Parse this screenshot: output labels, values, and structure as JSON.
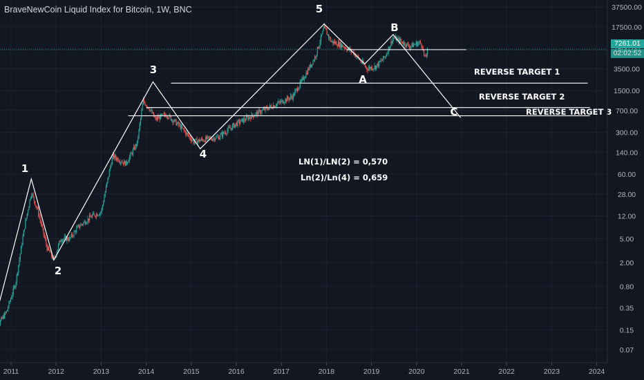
{
  "header": {
    "title": "BraveNewCoin Liquid Index for Bitcoin, 1W, BNC"
  },
  "price_labels": {
    "last_price": "7261.01",
    "countdown": "02:02:52"
  },
  "colors": {
    "background": "#131722",
    "up": "#26a69a",
    "down": "#ef5350",
    "price_line": "#26a69a",
    "annotation": "#ffffff",
    "grid": "#1e2230"
  },
  "chart_data": {
    "type": "candlestick",
    "title": "BraveNewCoin Liquid Index for Bitcoin, 1W, BNC",
    "yscale": "log",
    "y_ticks": [
      "0.07",
      "0.15",
      "0.35",
      "0.80",
      "2.00",
      "5.00",
      "12.00",
      "28.00",
      "60.00",
      "140.00",
      "300.00",
      "700.00",
      "1500.00",
      "3500.00",
      "7500.00",
      "17500.00",
      "37500.00"
    ],
    "x_ticks": [
      "2011",
      "2012",
      "2013",
      "2014",
      "2015",
      "2016",
      "2017",
      "2018",
      "2019",
      "2020",
      "2021",
      "2022",
      "2023",
      "2024"
    ],
    "price_anchors": [
      {
        "t": 2010.55,
        "v": 0.05
      },
      {
        "t": 2010.75,
        "v": 0.2
      },
      {
        "t": 2010.9,
        "v": 0.3
      },
      {
        "t": 2011.1,
        "v": 0.9
      },
      {
        "t": 2011.3,
        "v": 8
      },
      {
        "t": 2011.45,
        "v": 30
      },
      {
        "t": 2011.6,
        "v": 14
      },
      {
        "t": 2011.8,
        "v": 3.5
      },
      {
        "t": 2011.95,
        "v": 2.2
      },
      {
        "t": 2012.1,
        "v": 5
      },
      {
        "t": 2012.3,
        "v": 5
      },
      {
        "t": 2012.5,
        "v": 8
      },
      {
        "t": 2012.8,
        "v": 12
      },
      {
        "t": 2013.0,
        "v": 14
      },
      {
        "t": 2013.25,
        "v": 120
      },
      {
        "t": 2013.35,
        "v": 110
      },
      {
        "t": 2013.55,
        "v": 90
      },
      {
        "t": 2013.8,
        "v": 200
      },
      {
        "t": 2013.93,
        "v": 1000
      },
      {
        "t": 2014.05,
        "v": 800
      },
      {
        "t": 2014.2,
        "v": 500
      },
      {
        "t": 2014.45,
        "v": 600
      },
      {
        "t": 2014.75,
        "v": 380
      },
      {
        "t": 2015.05,
        "v": 210
      },
      {
        "t": 2015.3,
        "v": 230
      },
      {
        "t": 2015.6,
        "v": 250
      },
      {
        "t": 2016.0,
        "v": 420
      },
      {
        "t": 2016.5,
        "v": 650
      },
      {
        "t": 2016.9,
        "v": 900
      },
      {
        "t": 2017.25,
        "v": 1200
      },
      {
        "t": 2017.5,
        "v": 2500
      },
      {
        "t": 2017.75,
        "v": 5500
      },
      {
        "t": 2017.95,
        "v": 17000
      },
      {
        "t": 2018.1,
        "v": 10000
      },
      {
        "t": 2018.35,
        "v": 8500
      },
      {
        "t": 2018.6,
        "v": 6500
      },
      {
        "t": 2018.9,
        "v": 3500
      },
      {
        "t": 2019.1,
        "v": 3800
      },
      {
        "t": 2019.3,
        "v": 5500
      },
      {
        "t": 2019.48,
        "v": 11500
      },
      {
        "t": 2019.65,
        "v": 10000
      },
      {
        "t": 2019.85,
        "v": 8200
      },
      {
        "t": 2020.05,
        "v": 9500
      },
      {
        "t": 2020.12,
        "v": 9000
      },
      {
        "t": 2020.18,
        "v": 5000
      },
      {
        "t": 2020.25,
        "v": 7261.01
      }
    ],
    "current_price": 7261.01,
    "wave_labels": [
      {
        "label": "1",
        "t": 2011.45,
        "v": 30
      },
      {
        "label": "2",
        "t": 2011.95,
        "v": 2.2
      },
      {
        "label": "3",
        "t": 2014.15,
        "v": 1000
      },
      {
        "label": "4",
        "t": 2015.25,
        "v": 140
      },
      {
        "label": "5",
        "t": 2017.95,
        "v": 19000
      },
      {
        "label": "A",
        "t": 2018.85,
        "v": 3200
      },
      {
        "label": "B",
        "t": 2019.48,
        "v": 12500
      },
      {
        "label": "C",
        "t": 2020.8,
        "v": 450
      }
    ],
    "wave_path": [
      {
        "t": 2010.55,
        "v": 0.12
      },
      {
        "t": 2011.45,
        "v": 50
      },
      {
        "t": 2011.95,
        "v": 2.2
      },
      {
        "t": 2014.15,
        "v": 2100
      },
      {
        "t": 2015.2,
        "v": 160
      },
      {
        "t": 2017.95,
        "v": 19500
      },
      {
        "t": 2018.85,
        "v": 4200
      },
      {
        "t": 2019.48,
        "v": 13000
      },
      {
        "t": 2020.98,
        "v": 530
      }
    ],
    "targets": [
      {
        "label": "REVERSE TARGET 1",
        "v": 2000,
        "t0": 2014.55,
        "t1": 2023.8
      },
      {
        "label": "REVERSE TARGET 2",
        "v": 780,
        "t0": 2014.0,
        "t1": 2023.85
      },
      {
        "label": "REVERSE  TARGET 3",
        "v": 570,
        "t0": 2013.6,
        "t1": 2023.85
      },
      {
        "label": "",
        "v": 7261.01,
        "t0": 2018.45,
        "t1": 2021.1
      }
    ],
    "ratios": [
      "LN(1)/LN(2) = 0,570",
      "Ln(2)/Ln(4) = 0,659"
    ]
  }
}
